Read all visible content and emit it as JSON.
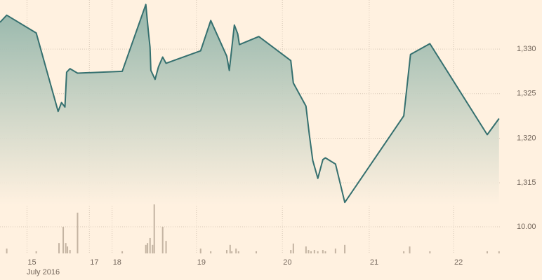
{
  "chart_data": [
    {
      "type": "line",
      "color": "#35706f",
      "x": [
        0,
        0.08,
        0.43,
        0.69,
        0.73,
        0.77,
        0.79,
        0.83,
        0.92,
        1.45,
        1.73,
        1.76,
        1.78,
        1.79,
        1.84,
        1.88,
        1.93,
        1.97,
        2.38,
        2.5,
        2.69,
        2.72,
        2.78,
        2.82,
        2.84,
        3.07,
        3.45,
        3.48,
        3.63,
        3.67,
        3.71,
        3.77,
        3.83,
        3.86,
        3.98,
        4.09,
        4.79,
        4.87,
        5.1,
        5.78,
        5.92
      ],
      "values": [
        1333.0,
        1333.8,
        1331.8,
        1323.0,
        1324.0,
        1323.5,
        1327.4,
        1327.8,
        1327.3,
        1327.5,
        1335.0,
        1332.0,
        1330.2,
        1327.6,
        1326.6,
        1328.0,
        1329.1,
        1328.4,
        1329.8,
        1333.2,
        1329.2,
        1327.6,
        1332.7,
        1331.7,
        1330.5,
        1331.4,
        1328.7,
        1326.2,
        1323.6,
        1320.4,
        1317.5,
        1315.5,
        1317.6,
        1317.8,
        1317.1,
        1312.8,
        1322.5,
        1329.4,
        1330.6,
        1320.4,
        1322.2
      ],
      "xlim": [
        0,
        5.93
      ],
      "ylim": [
        1312.5,
        1335.5
      ],
      "yticks": [
        {
          "value": 1315,
          "label": "1,315"
        },
        {
          "value": 1320,
          "label": "1,320"
        },
        {
          "value": 1325,
          "label": "1,325"
        },
        {
          "value": 1330,
          "label": "1,330"
        }
      ],
      "grid": true
    },
    {
      "type": "bar",
      "color": "#c4b4a2",
      "x": [
        0.08,
        0.43,
        0.7,
        0.75,
        0.78,
        0.8,
        0.83,
        0.92,
        1.45,
        1.73,
        1.75,
        1.78,
        1.81,
        1.83,
        1.93,
        1.97,
        2.38,
        2.5,
        2.69,
        2.73,
        2.75,
        2.8,
        2.83,
        3.04,
        3.45,
        3.48,
        3.63,
        3.66,
        3.69,
        3.73,
        3.77,
        3.83,
        3.86,
        3.98,
        4.09,
        4.79,
        4.86,
        5.1,
        5.78,
        5.92
      ],
      "values": [
        1.8,
        0.8,
        3.9,
        10,
        3.9,
        2.6,
        1.3,
        15.3,
        0.8,
        3.2,
        3.9,
        5.8,
        3.2,
        18.4,
        10,
        4.7,
        1.8,
        0.8,
        1.3,
        3.2,
        0.8,
        1.8,
        0.8,
        0.8,
        1.3,
        3.7,
        2.6,
        1.3,
        0.8,
        1.3,
        0.8,
        1.3,
        0.8,
        1.8,
        3.2,
        0.8,
        2.6,
        0.8,
        0.8,
        0.8
      ],
      "xlim": [
        0,
        5.93
      ],
      "ylim": [
        0,
        18.4
      ],
      "yticks": [
        {
          "value": 10,
          "label": "10.00"
        }
      ],
      "xticks": [
        {
          "value": 0.32,
          "label": "15"
        },
        {
          "value": 1.06,
          "label": "17"
        },
        {
          "value": 1.33,
          "label": "18"
        },
        {
          "value": 2.33,
          "label": "19"
        },
        {
          "value": 3.35,
          "label": "20"
        },
        {
          "value": 4.38,
          "label": "21"
        },
        {
          "value": 5.38,
          "label": "22"
        }
      ],
      "xlabel": "July 2016",
      "grid": true
    }
  ]
}
